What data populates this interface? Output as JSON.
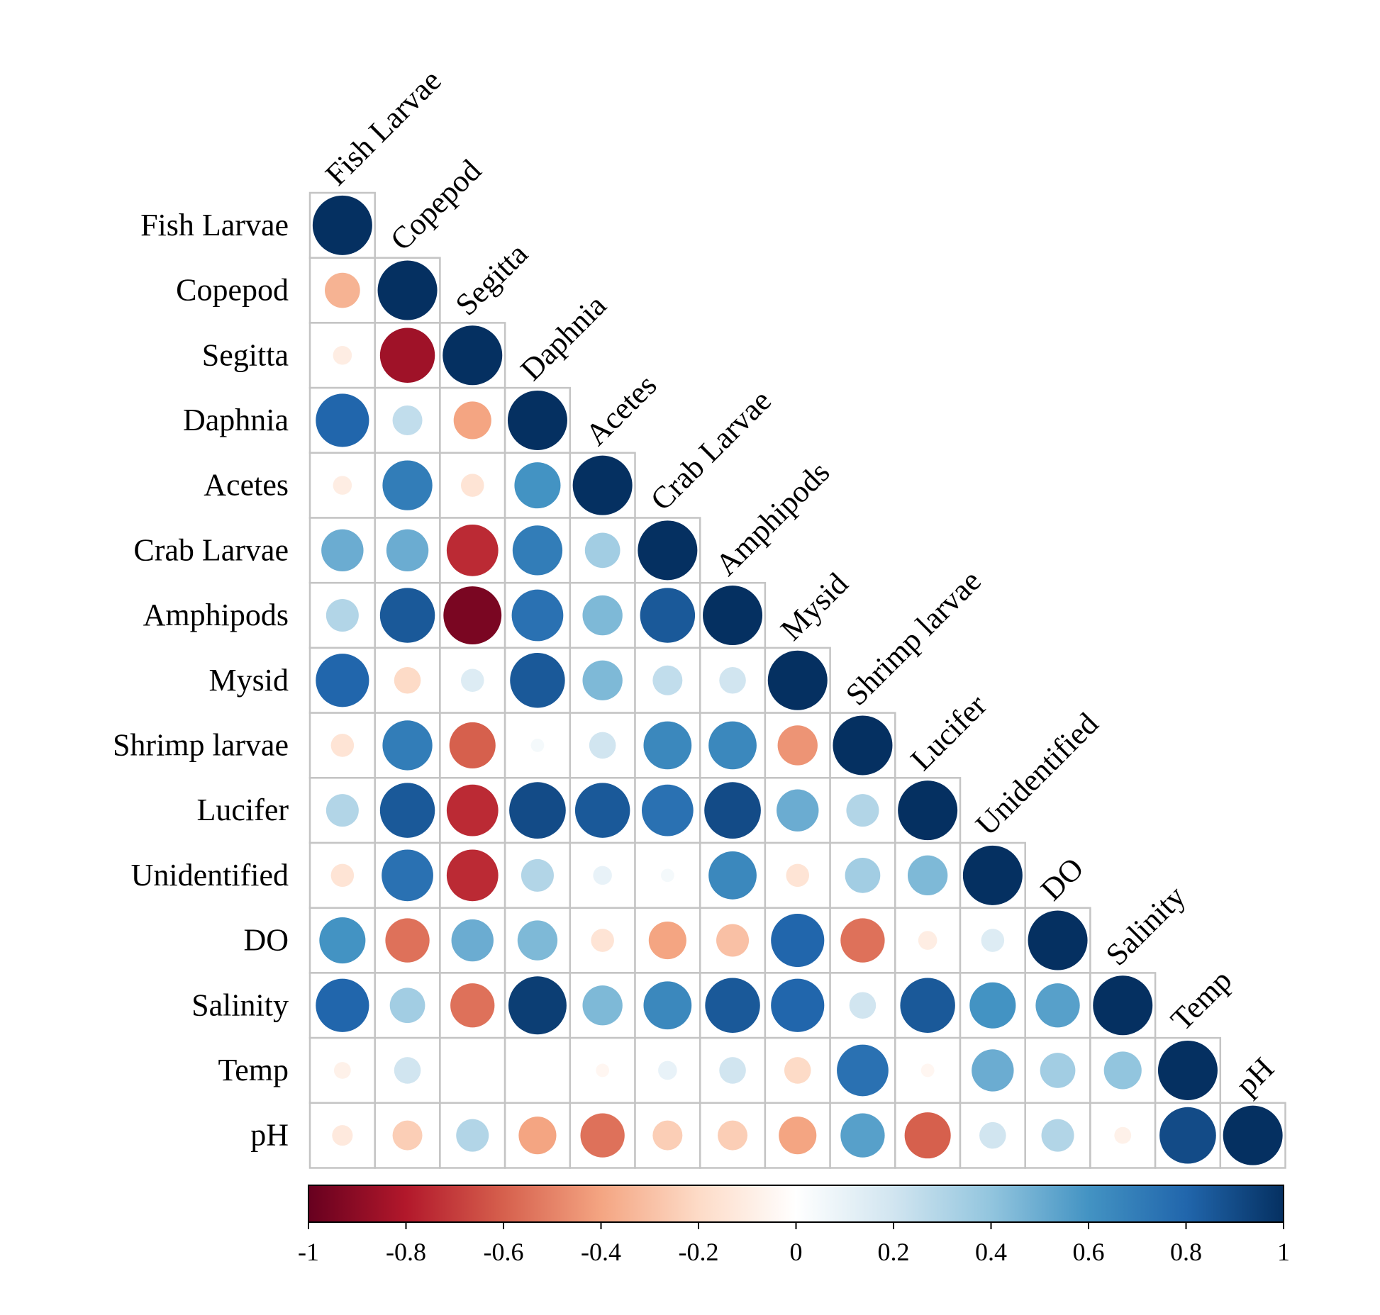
{
  "chart_data": {
    "type": "heatmap",
    "style": "lower-triangle correlation matrix, circle glyphs (size and color by value)",
    "variables": [
      "Fish Larvae",
      "Copepod",
      "Segitta",
      "Daphnia",
      "Acetes",
      "Crab Larvae",
      "Amphipods",
      "Mysid",
      "Shrimp larvae",
      "Lucifer",
      "Unidentified",
      "DO",
      "Salinity",
      "Temp",
      "pH"
    ],
    "matrix": [
      [
        1
      ],
      [
        -0.35,
        1
      ],
      [
        -0.1,
        -0.85,
        1
      ],
      [
        0.8,
        0.25,
        -0.4,
        1
      ],
      [
        -0.1,
        0.7,
        -0.15,
        0.6,
        1
      ],
      [
        0.5,
        0.5,
        -0.75,
        0.7,
        0.35,
        1
      ],
      [
        0.3,
        0.85,
        -0.95,
        0.75,
        0.45,
        0.85,
        1
      ],
      [
        0.8,
        -0.2,
        0.15,
        0.85,
        0.45,
        0.25,
        0.2,
        1
      ],
      [
        -0.15,
        0.7,
        -0.6,
        0.05,
        0.2,
        0.65,
        0.65,
        -0.45,
        1
      ],
      [
        0.3,
        0.85,
        -0.75,
        0.9,
        0.85,
        0.75,
        0.9,
        0.5,
        0.3,
        1
      ],
      [
        -0.15,
        0.75,
        -0.75,
        0.3,
        0.1,
        0.05,
        0.65,
        -0.15,
        0.35,
        0.45,
        1
      ],
      [
        0.6,
        -0.55,
        0.5,
        0.45,
        -0.15,
        -0.4,
        -0.3,
        0.8,
        -0.55,
        -0.1,
        0.15,
        1
      ],
      [
        0.8,
        0.35,
        -0.55,
        0.95,
        0.45,
        0.65,
        0.85,
        0.8,
        0.2,
        0.85,
        0.6,
        0.55,
        1
      ],
      [
        -0.08,
        0.2,
        0,
        0,
        -0.05,
        0.1,
        0.2,
        -0.2,
        0.75,
        -0.05,
        0.5,
        0.35,
        0.4,
        1
      ],
      [
        -0.12,
        -0.25,
        0.3,
        -0.4,
        -0.55,
        -0.25,
        -0.25,
        -0.4,
        0.55,
        -0.6,
        0.2,
        0.3,
        -0.08,
        0.9,
        1
      ]
    ],
    "colorbar": {
      "range": [
        -1,
        1
      ],
      "ticks": [
        "-1",
        "-0.8",
        "-0.6",
        "-0.4",
        "-0.2",
        "0",
        "0.2",
        "0.4",
        "0.6",
        "0.8",
        "1"
      ],
      "colors": [
        "#67001F",
        "#B2182B",
        "#D6604D",
        "#F4A582",
        "#FDDBC7",
        "#FFFFFF",
        "#D1E5F0",
        "#92C5DE",
        "#4393C3",
        "#2166AC",
        "#053061"
      ]
    },
    "grid": true,
    "legend": "bottom colorbar"
  }
}
